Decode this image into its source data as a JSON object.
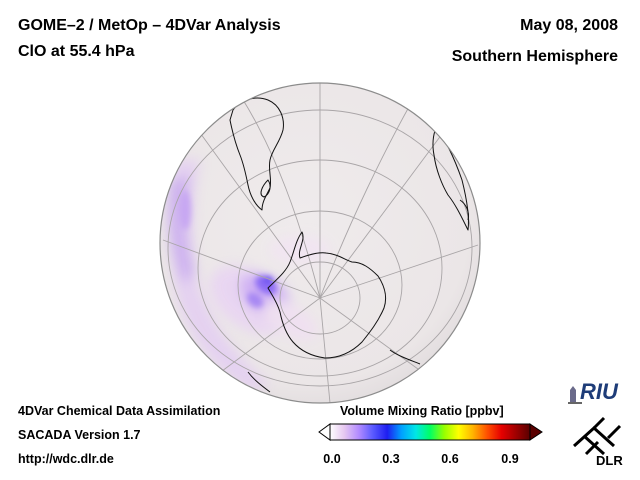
{
  "header": {
    "title_line1": "GOME–2 / MetOp – 4DVar Analysis",
    "title_line2": "ClO at 55.4 hPa",
    "date": "May 08, 2008",
    "hemisphere": "Southern Hemisphere"
  },
  "footer": {
    "line1": "4DVar Chemical Data Assimilation",
    "line2": "SACADA Version 1.7",
    "line3": "http://wdc.dlr.de"
  },
  "colorbar": {
    "title": "Volume Mixing Ratio [ppbv]",
    "ticks": [
      "0.0",
      "0.3",
      "0.6",
      "0.9"
    ],
    "colors": [
      "#ffffff",
      "#e6c8f0",
      "#b38cff",
      "#5a5aff",
      "#1e1ef0",
      "#00a0ff",
      "#00e6e6",
      "#00ff64",
      "#96ff00",
      "#ffff00",
      "#ffb400",
      "#ff5000",
      "#e60000",
      "#a00000",
      "#5a0000"
    ]
  },
  "logos": {
    "riu": "RIU",
    "dlr": "DLR"
  }
}
